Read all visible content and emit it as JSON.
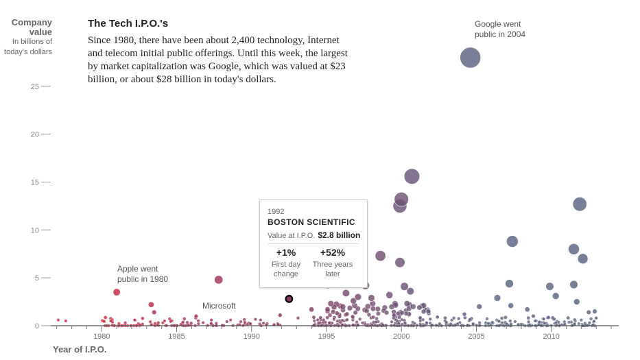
{
  "y_axis": {
    "title": "Company value",
    "subtitle": "In billions of today's dollars"
  },
  "intro": {
    "title": "The Tech I.P.O.'s",
    "body": "Since 1980, there have been about 2,400 technology, Internet and telecom initial public offerings. Until this week, the largest by market capitalization was Google, which was valued at $23 billion, or about $28 billion in today's dollars."
  },
  "annotations": {
    "google": "Google went public in 2004",
    "apple": "Apple went public in 1980",
    "microsoft": "Microsoft"
  },
  "tooltip": {
    "year": "1992",
    "company": "BOSTON SCIENTIFIC",
    "value_label": "Value at I.P.O.",
    "value": "$2.8 billion",
    "first_day": "+1%",
    "first_day_label": "First day change",
    "three_year": "+52%",
    "three_year_label": "Three years later"
  },
  "x_axis_title": "Year of I.P.O.",
  "colors": {
    "early": "#c8283c",
    "mid": "#8a3a62",
    "late": "#5a6480",
    "highlight_stroke": "#000000"
  },
  "chart_data": {
    "type": "scatter",
    "title": "The Tech I.P.O.'s",
    "xlabel": "Year of I.P.O.",
    "ylabel": "Company value (in billions of today's dollars)",
    "xlim": [
      1976.6,
      2014.5
    ],
    "ylim": [
      0,
      28
    ],
    "x_ticks": [
      1980,
      1985,
      1990,
      1995,
      2000,
      2005,
      2010
    ],
    "y_ticks": [
      0,
      5,
      10,
      15,
      20,
      25
    ],
    "grid": false,
    "size_encodes": "value",
    "highlighted": {
      "x": 1992.5,
      "y": 2.8,
      "name": "BOSTON SCIENTIFIC"
    },
    "points": [
      {
        "x": 2004.6,
        "y": 28.0
      },
      {
        "x": 2000.7,
        "y": 15.6
      },
      {
        "x": 2000.0,
        "y": 13.2
      },
      {
        "x": 1999.9,
        "y": 12.5
      },
      {
        "x": 2011.9,
        "y": 12.7
      },
      {
        "x": 2007.4,
        "y": 8.8
      },
      {
        "x": 2011.5,
        "y": 8.0
      },
      {
        "x": 2012.1,
        "y": 7.0
      },
      {
        "x": 1998.6,
        "y": 7.3
      },
      {
        "x": 1999.9,
        "y": 6.6
      },
      {
        "x": 1987.8,
        "y": 4.8
      },
      {
        "x": 1981.0,
        "y": 3.5
      },
      {
        "x": 1995.1,
        "y": 4.3
      },
      {
        "x": 1997.6,
        "y": 4.2
      },
      {
        "x": 2000.2,
        "y": 4.1
      },
      {
        "x": 2007.2,
        "y": 4.4
      },
      {
        "x": 2009.9,
        "y": 4.1
      },
      {
        "x": 2011.5,
        "y": 4.3
      },
      {
        "x": 2010.3,
        "y": 3.1
      },
      {
        "x": 2006.4,
        "y": 2.9
      },
      {
        "x": 2005.2,
        "y": 2.0
      },
      {
        "x": 2007.3,
        "y": 2.1
      },
      {
        "x": 2008.4,
        "y": 1.7
      },
      {
        "x": 2011.7,
        "y": 2.5
      },
      {
        "x": 1996.3,
        "y": 3.4
      },
      {
        "x": 1996.8,
        "y": 2.6
      },
      {
        "x": 1997.1,
        "y": 3.0
      },
      {
        "x": 1999.2,
        "y": 3.2
      },
      {
        "x": 2000.6,
        "y": 3.6
      },
      {
        "x": 1998.0,
        "y": 2.9
      },
      {
        "x": 1994.0,
        "y": 1.7
      },
      {
        "x": 1992.5,
        "y": 2.8
      },
      {
        "x": 1983.3,
        "y": 2.2
      },
      {
        "x": 1983.5,
        "y": 1.4
      },
      {
        "x": 1986.3,
        "y": 1.0
      },
      {
        "x": 1991.9,
        "y": 1.1
      },
      {
        "x": 1980.6,
        "y": 0.5
      },
      {
        "x": 1982.2,
        "y": 0.6
      },
      {
        "x": 1984.2,
        "y": 0.5
      },
      {
        "x": 1988.6,
        "y": 0.6
      },
      {
        "x": 1990.6,
        "y": 0.6
      },
      {
        "x": 1993.1,
        "y": 0.8
      },
      {
        "x": 1995.7,
        "y": 1.3
      },
      {
        "x": 2001.2,
        "y": 1.9
      },
      {
        "x": 2001.8,
        "y": 1.5
      },
      {
        "x": 2002.4,
        "y": 0.9
      },
      {
        "x": 2003.5,
        "y": 0.8
      },
      {
        "x": 2004.2,
        "y": 1.2
      },
      {
        "x": 2008.8,
        "y": 1.0
      },
      {
        "x": 2009.5,
        "y": 0.7
      },
      {
        "x": 2012.5,
        "y": 1.4
      },
      {
        "x": 2012.9,
        "y": 1.5
      },
      {
        "x": 2013.0,
        "y": 0.8
      },
      {
        "x": 1977.1,
        "y": 0.6
      },
      {
        "x": 1977.6,
        "y": 0.5
      }
    ]
  }
}
